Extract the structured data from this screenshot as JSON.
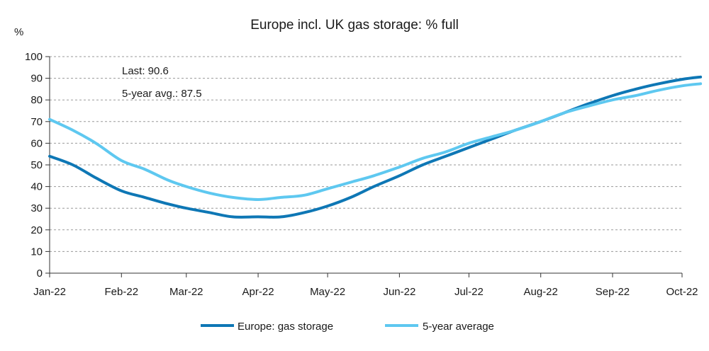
{
  "chart_data": {
    "type": "line",
    "title": "Europe incl. UK gas storage: % full",
    "ylabel": "%",
    "xlabel": "",
    "ylim": [
      0,
      100
    ],
    "yticks": [
      0,
      10,
      20,
      30,
      40,
      50,
      60,
      70,
      80,
      90,
      100
    ],
    "xticks": [
      "Jan-22",
      "Feb-22",
      "Mar-22",
      "Apr-22",
      "May-22",
      "Jun-22",
      "Jul-22",
      "Aug-22",
      "Sep-22",
      "Oct-22"
    ],
    "grid": "horizontal dashed",
    "legend_position": "bottom",
    "annotations": [
      "Last: 90.6",
      "5-year avg.: 87.5"
    ],
    "x": [
      "2022-01-01",
      "2022-01-11",
      "2022-01-21",
      "2022-02-01",
      "2022-02-11",
      "2022-02-21",
      "2022-03-01",
      "2022-03-11",
      "2022-03-21",
      "2022-04-01",
      "2022-04-11",
      "2022-04-21",
      "2022-05-01",
      "2022-05-11",
      "2022-05-21",
      "2022-06-01",
      "2022-06-11",
      "2022-06-21",
      "2022-07-01",
      "2022-07-11",
      "2022-07-21",
      "2022-08-01",
      "2022-08-11",
      "2022-08-21",
      "2022-09-01",
      "2022-09-11",
      "2022-09-21",
      "2022-10-01",
      "2022-10-09"
    ],
    "series": [
      {
        "name": "Europe: gas storage",
        "color": "#0e77b5",
        "values": [
          54,
          50,
          44,
          38,
          35,
          32,
          30,
          28,
          26,
          26,
          26,
          28,
          31,
          35,
          40,
          45,
          50,
          54,
          58,
          62,
          66,
          70,
          74,
          78,
          82,
          85,
          87.5,
          89.5,
          90.6
        ]
      },
      {
        "name": "5-year average",
        "color": "#5ec8f0",
        "values": [
          71,
          66,
          60,
          52,
          48,
          43,
          40,
          37,
          35,
          34,
          35,
          36,
          39,
          42,
          45,
          49,
          53,
          56,
          60,
          63,
          66,
          70,
          74,
          77,
          80,
          82,
          84.5,
          86.5,
          87.5
        ]
      }
    ]
  }
}
